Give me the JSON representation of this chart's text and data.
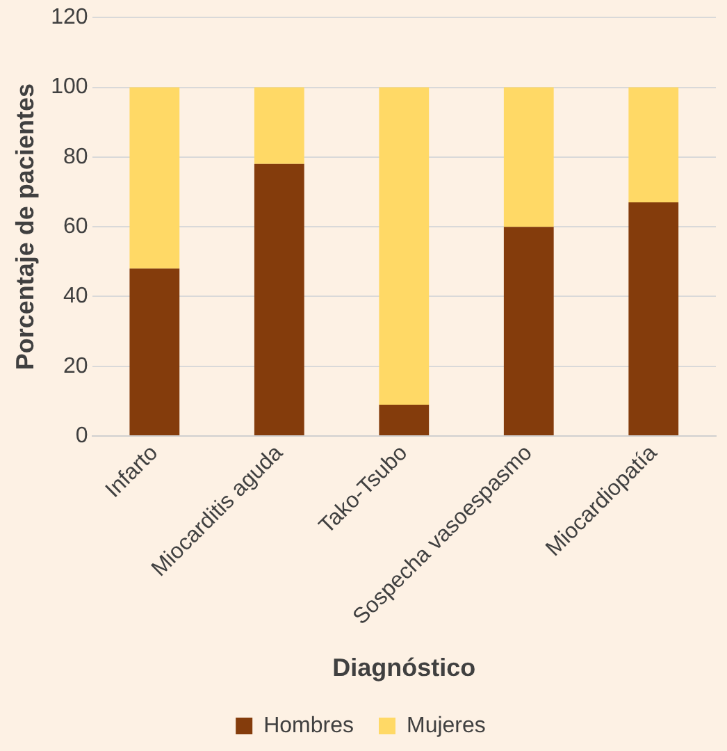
{
  "chart_data": {
    "type": "bar",
    "stacked": true,
    "xlabel": "Diagnóstico",
    "ylabel": "Porcentaje de pacientes",
    "categories": [
      "Infarto",
      "Miocarditis aguda",
      "Tako-Tsubo",
      "Sospecha vasoespasmo",
      "Miocardiopatía"
    ],
    "series": [
      {
        "name": "Hombres",
        "color": "#843c0c",
        "values": [
          48,
          78,
          9,
          60,
          67
        ]
      },
      {
        "name": "Mujeres",
        "color": "#ffd966",
        "values": [
          52,
          22,
          91,
          40,
          33
        ]
      }
    ],
    "ylim": [
      0,
      120
    ],
    "yticks": [
      0,
      20,
      40,
      60,
      80,
      100,
      120
    ],
    "grid": "y",
    "legend": "bottom"
  }
}
